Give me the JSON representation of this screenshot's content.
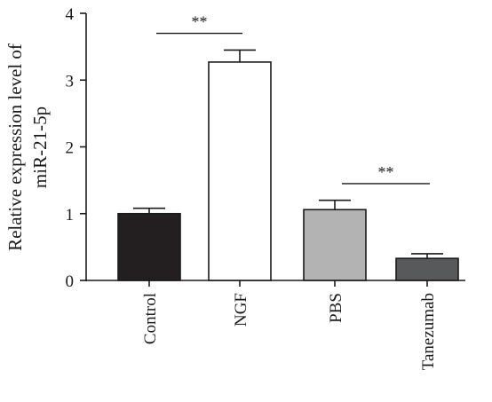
{
  "chart_data": {
    "type": "bar",
    "title": "",
    "xlabel": "",
    "ylabel_lines": [
      "Relative expression level of",
      "miR-21-5p"
    ],
    "categories": [
      "Control",
      "NGF",
      "PBS",
      "Tanezumab"
    ],
    "values": [
      1.0,
      3.27,
      1.06,
      0.33
    ],
    "errors": [
      0.08,
      0.18,
      0.14,
      0.07
    ],
    "bar_colors": [
      "#231f20",
      "#ffffff",
      "#b3b3b3",
      "#58595b"
    ],
    "ylim": [
      0,
      4
    ],
    "yticks": [
      "0",
      "1",
      "2",
      "3",
      "4"
    ],
    "grid": false,
    "significance": [
      {
        "label": "**",
        "from": 0,
        "to": 1,
        "y": 3.7
      },
      {
        "label": "**",
        "from": 2,
        "to": 3,
        "y": 1.45
      }
    ]
  }
}
